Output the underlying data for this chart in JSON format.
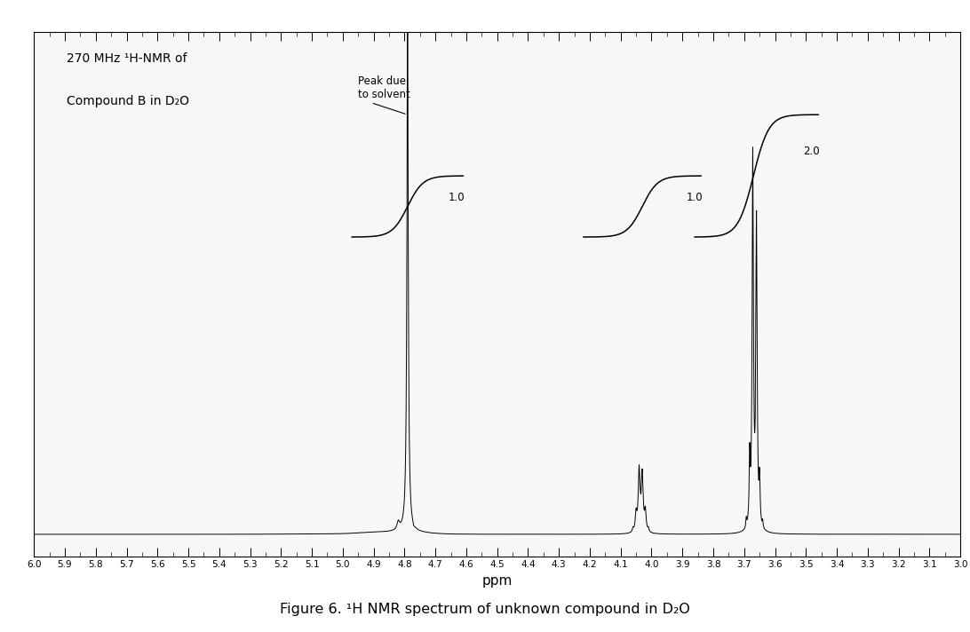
{
  "title": "Figure 6. ¹H NMR spectrum of unknown compound in D₂O",
  "spectrum_title_line1": "270 MHz ¹H-NMR of",
  "spectrum_title_line2": "Compound B in D₂O",
  "xlabel": "ppm",
  "xmin": 3.0,
  "xmax": 6.0,
  "background_color": "#f5f5f5",
  "border_color": "#aaaaaa",
  "peak_due_to_solvent": "Peak due\nto solvent",
  "solvent_peak_ppm": 4.79,
  "peak1_ppm": 4.03,
  "peak2_ppm": 3.67,
  "integral_label_solvent": "1.0",
  "integral_label_peak1": "1.0",
  "integral_label_peak2": "2.0"
}
